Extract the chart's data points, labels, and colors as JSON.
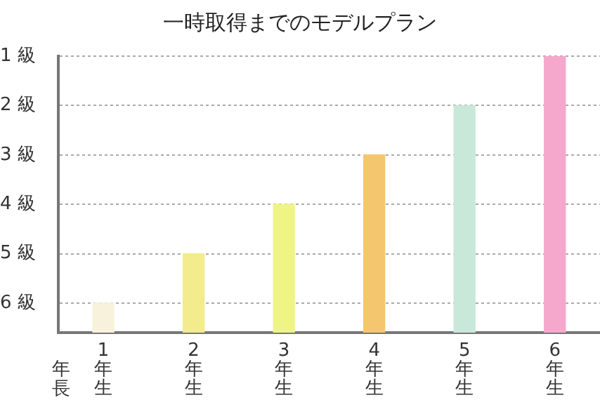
{
  "chart_data": {
    "type": "bar",
    "title": "一時取得までのモデルプラン",
    "categories": [
      "1年生",
      "2年生",
      "3年生",
      "4年生",
      "5年生",
      "6年生"
    ],
    "values": [
      -0.6,
      -1.6,
      -2.6,
      -3.6,
      -4.6,
      -5.6
    ],
    "base": [
      6.6,
      6.6,
      6.6,
      6.6,
      6.6,
      6.6
    ],
    "colors": [
      "#f8f1dc",
      "#f2ec8c",
      "#eef585",
      "#f4c76e",
      "#c8e8da",
      "#f5a8cc"
    ],
    "ylim": [
      6.6,
      1
    ],
    "yticks": [
      {
        "value": 1,
        "label": "1 級"
      },
      {
        "value": 2,
        "label": "2 級"
      },
      {
        "value": 3,
        "label": "3 級"
      },
      {
        "value": 4,
        "label": "4 級"
      },
      {
        "value": 5,
        "label": "5 級"
      },
      {
        "value": 6,
        "label": "6 級"
      }
    ],
    "annotations": [
      "年長"
    ],
    "grid": "y",
    "legend": false
  }
}
